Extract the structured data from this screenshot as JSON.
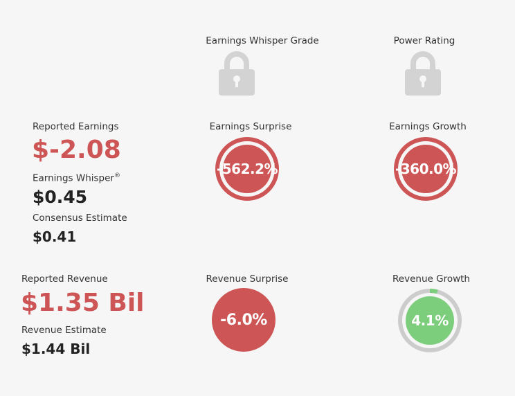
{
  "grades": {
    "whisper_grade_label": "Earnings Whisper Grade",
    "power_rating_label": "Power Rating",
    "lock_icon": "lock-icon"
  },
  "earnings": {
    "reported_label": "Reported Earnings",
    "reported_value": "$-2.08",
    "whisper_label": "Earnings Whisper",
    "whisper_mark": "®",
    "whisper_value": "$0.45",
    "consensus_label": "Consensus Estimate",
    "consensus_value": "$0.41",
    "surprise_label": "Earnings Surprise",
    "surprise_value": "-562.2%",
    "growth_label": "Earnings Growth",
    "growth_value": "-360.0%"
  },
  "revenue": {
    "reported_label": "Reported Revenue",
    "reported_value": "$1.35 Bil",
    "estimate_label": "Revenue Estimate",
    "estimate_value": "$1.44 Bil",
    "surprise_label": "Revenue Surprise",
    "surprise_value": "-6.0%",
    "growth_label": "Revenue Growth",
    "growth_value": "4.1%",
    "growth_fraction": 0.041
  },
  "colors": {
    "negative": "#cd5555",
    "positive": "#7ccd7c",
    "lock": "#d3d3d3",
    "track": "#cccccc"
  }
}
